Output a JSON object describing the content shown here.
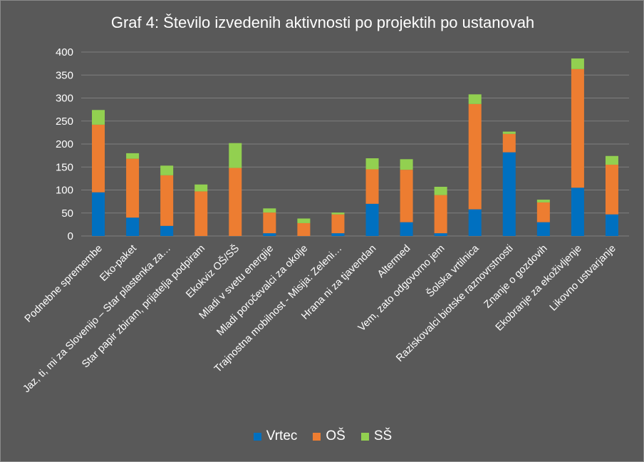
{
  "chart_data": {
    "type": "bar",
    "stacked": true,
    "title": "Graf 4: Število izvedenih aktivnosti po projektih po ustanovah",
    "categories": [
      "Podnebne spremembe",
      "Eko-paket",
      "Jaz, ti, mi za Slovenijo – Star plastenka za…",
      "Star papir zbiram, prijatelja podpiram",
      "Ekokviz OŠ/SŠ",
      "Mladi v svetu energije",
      "Mladi poročevalci za okolje",
      "Trajnostna mobilnost - Misija: Zeleni…",
      "Hrana ni za tjavendan",
      "Altermed",
      "Vem, zato  odgovorno jem",
      "Šolska vrtilnica",
      "Raziskovalci biotske raznovrstnosti",
      "Znanje o gozdovih",
      "Ekobranje za ekoživljenje",
      "Likovno ustvarjanje"
    ],
    "series": [
      {
        "name": "Vrtec",
        "color": "#0070c0",
        "values": [
          95,
          40,
          22,
          0,
          0,
          6,
          0,
          6,
          70,
          30,
          6,
          58,
          182,
          30,
          105,
          47
        ]
      },
      {
        "name": "OŠ",
        "color": "#ed7d31",
        "values": [
          147,
          128,
          110,
          97,
          148,
          45,
          28,
          41,
          75,
          114,
          83,
          229,
          40,
          43,
          258,
          108
        ]
      },
      {
        "name": "SŠ",
        "color": "#92d050",
        "values": [
          32,
          12,
          21,
          15,
          54,
          9,
          10,
          4,
          24,
          23,
          18,
          21,
          5,
          6,
          23,
          19
        ]
      }
    ],
    "ylim": [
      0,
      400
    ],
    "yticks": [
      0,
      50,
      100,
      150,
      200,
      250,
      300,
      350,
      400
    ],
    "grid": true,
    "legend_position": "bottom"
  }
}
